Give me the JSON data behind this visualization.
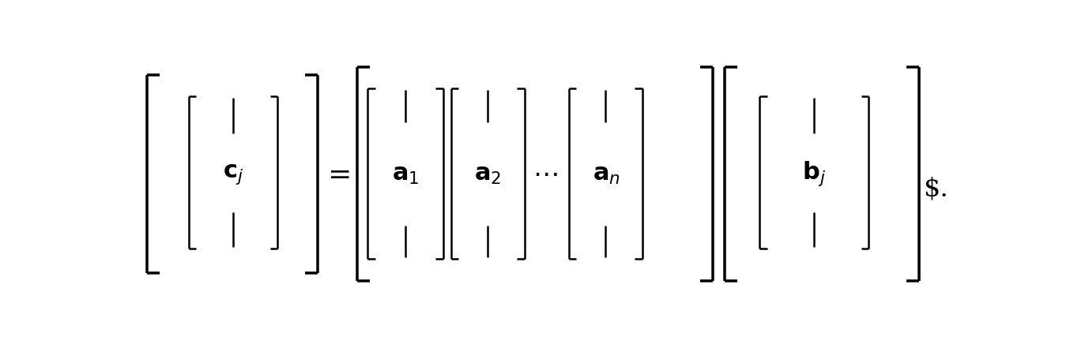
{
  "background_color": "#ffffff",
  "text_color": "#000000",
  "figsize": [
    13.54,
    4.36
  ],
  "dpi": 100,
  "lw": 1.8,
  "font_size": 22,
  "sub_font_size": 16
}
